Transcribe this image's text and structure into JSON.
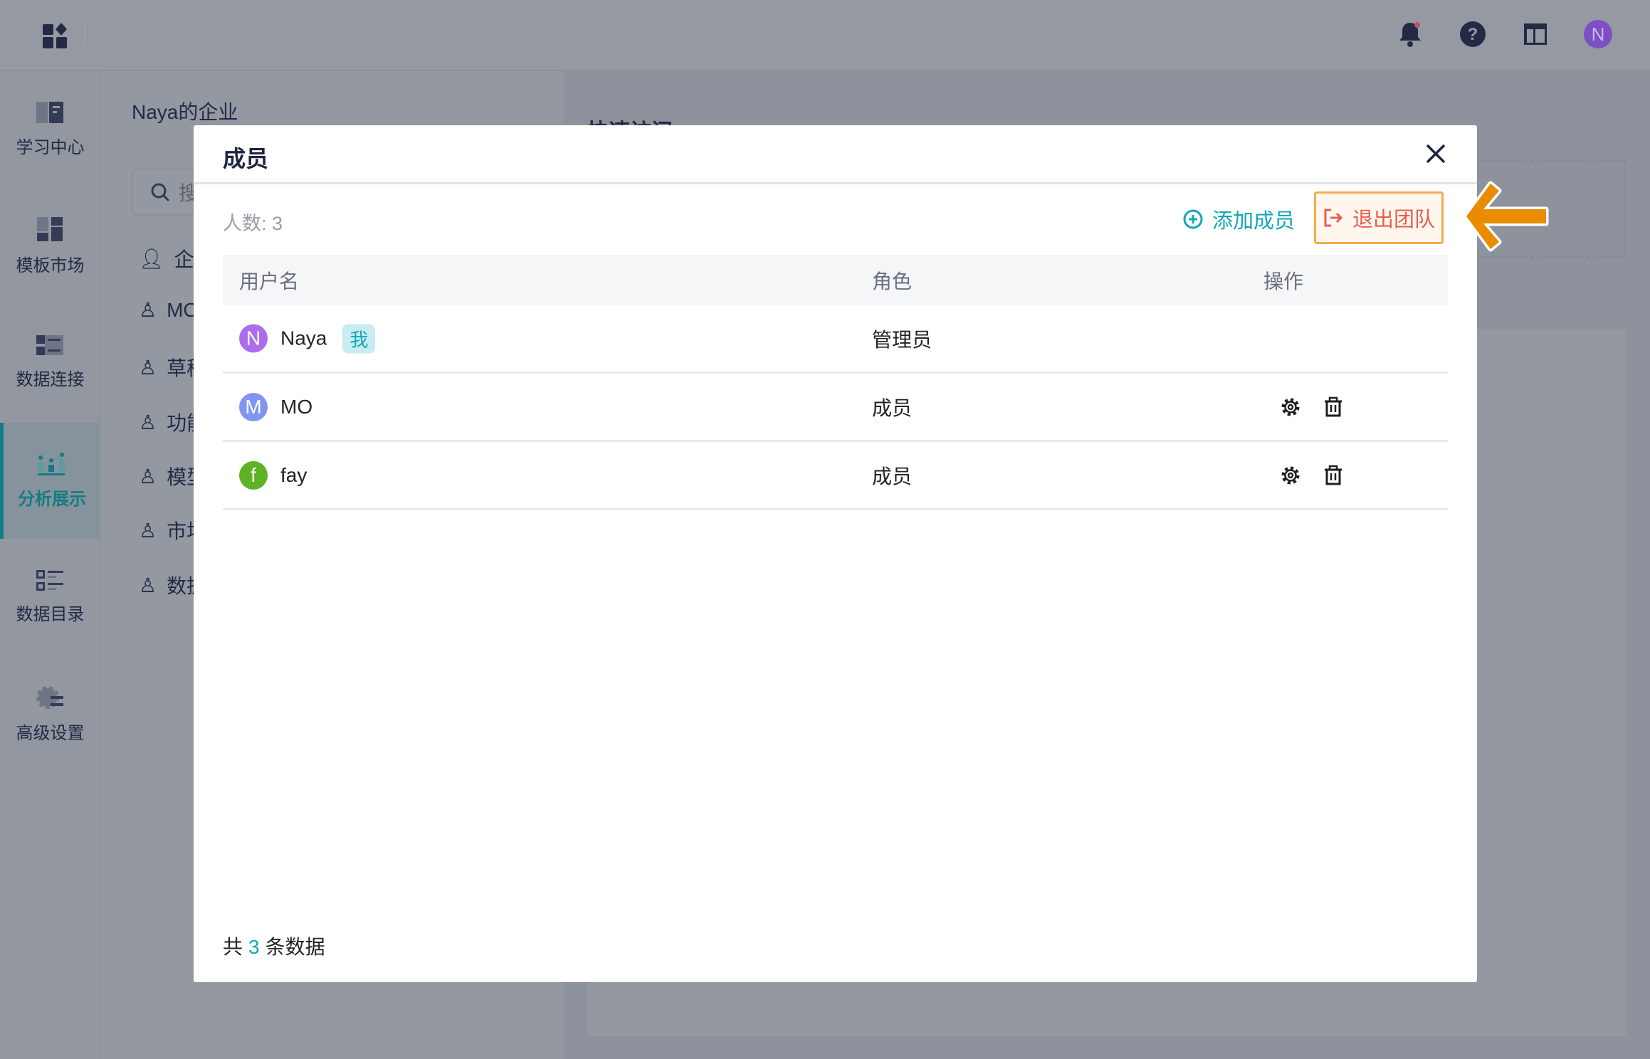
{
  "topbar": {
    "icons": [
      "apps-icon",
      "bell-icon",
      "help-icon",
      "layout-icon"
    ],
    "avatar_letter": "N",
    "avatar_color": "#7c4fc4"
  },
  "nav": {
    "items": [
      {
        "label": "学习中心",
        "icon": "book-icon"
      },
      {
        "label": "模板市场",
        "icon": "template-icon"
      },
      {
        "label": "数据连接",
        "icon": "data-connect-icon"
      },
      {
        "label": "分析展示",
        "icon": "chart-icon",
        "active": true
      },
      {
        "label": "数据目录",
        "icon": "catalog-icon"
      },
      {
        "label": "高级设置",
        "icon": "gear-icon"
      }
    ],
    "active_color": "#137b85"
  },
  "panel": {
    "title": "Naya的企业",
    "search_placeholder": "搜",
    "items": [
      "企业",
      "MO",
      "草稿",
      "功能",
      "模型",
      "市场",
      "数据"
    ]
  },
  "main": {
    "section_title": "快速访问"
  },
  "modal": {
    "title": "成员",
    "count_label": "人数: 3",
    "add_member": "添加成员",
    "exit_team": "退出团队",
    "columns": [
      "用户名",
      "角色",
      "操作"
    ],
    "rows": [
      {
        "initial": "N",
        "name": "Naya",
        "tag": "我",
        "role": "管理员",
        "color": "#ac6ded",
        "actions": false
      },
      {
        "initial": "M",
        "name": "MO",
        "role": "成员",
        "color": "#7f95f0",
        "actions": true
      },
      {
        "initial": "f",
        "name": "fay",
        "role": "成员",
        "color": "#5eb324",
        "actions": true
      }
    ],
    "footer": {
      "prefix": "共",
      "count": "3",
      "suffix": "条数据"
    }
  },
  "colors": {
    "accent": "#11a7b7",
    "danger": "#e85d4e",
    "highlight": "#f3ac4c",
    "arrow": "#ea8c00"
  }
}
